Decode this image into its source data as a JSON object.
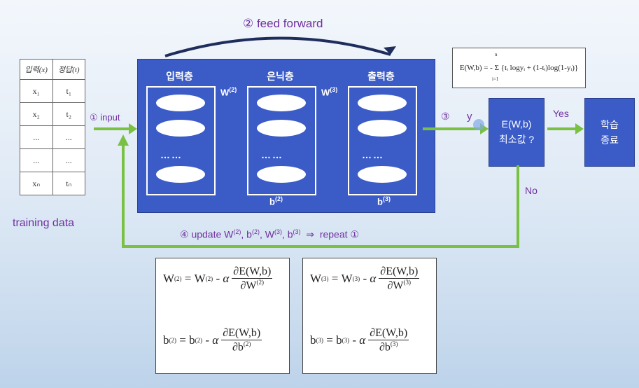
{
  "title": "② feed forward",
  "table": {
    "headers": [
      "입력(x)",
      "정답(t)"
    ],
    "rows": [
      [
        "x₁",
        "t₁"
      ],
      [
        "x₂",
        "t₂"
      ],
      [
        "...",
        "..."
      ],
      [
        "...",
        "..."
      ],
      [
        "xₙ",
        "tₙ"
      ]
    ]
  },
  "training_label": "training data",
  "step1_label": "① input",
  "network": {
    "input_layer": "입력층",
    "hidden_layer": "은닉층",
    "output_layer": "출력층",
    "dots": "……",
    "w2": "W",
    "w2_sup": "(2)",
    "w3": "W",
    "w3_sup": "(3)",
    "b2": "b",
    "b2_sup": "(2)",
    "b3": "b",
    "b3_sup": "(3)"
  },
  "step3_label": "③",
  "y_label": "y",
  "ebox": {
    "line1": "E(W,b)",
    "line2": "최소값 ?"
  },
  "yes_label": "Yes",
  "no_label": "No",
  "done": {
    "line1": "학습",
    "line2": "종료"
  },
  "loss_formula": "E(W,b) = - Σ {tᵢ logyᵢ + (1-tᵢ)log(1-yᵢ)}",
  "loss_sum_top": "n",
  "loss_sum_bottom": "i=1",
  "update_label": {
    "prefix": "④ update ",
    "w2": "W",
    "w2_sup": "(2)",
    "sep1": ", ",
    "b2": "b",
    "b2_sup": "(2)",
    "sep2": ", ",
    "w3": "W",
    "w3_sup": "(3)",
    "sep3": ", ",
    "b3": "b",
    "b3_sup": "(3)",
    "suffix": "  ⇒  repeat ①"
  },
  "formulas": {
    "w2_lhs": "W",
    "w2_sup": "(2)",
    "eq": "=",
    "minus": "-",
    "alpha": "α",
    "num": "∂E(W,b)",
    "w2_den": "∂W",
    "b2_lhs": "b",
    "b2_sup": "(2)",
    "b2_den": "∂b",
    "w3_lhs": "W",
    "w3_sup": "(3)",
    "w3_den": "∂W",
    "b3_lhs": "b",
    "b3_sup": "(3)",
    "b3_den": "∂b"
  },
  "colors": {
    "blue": "#3b5cc7",
    "green": "#7ac143",
    "purple": "#7030a0",
    "arcblue": "#1f2d5c"
  }
}
